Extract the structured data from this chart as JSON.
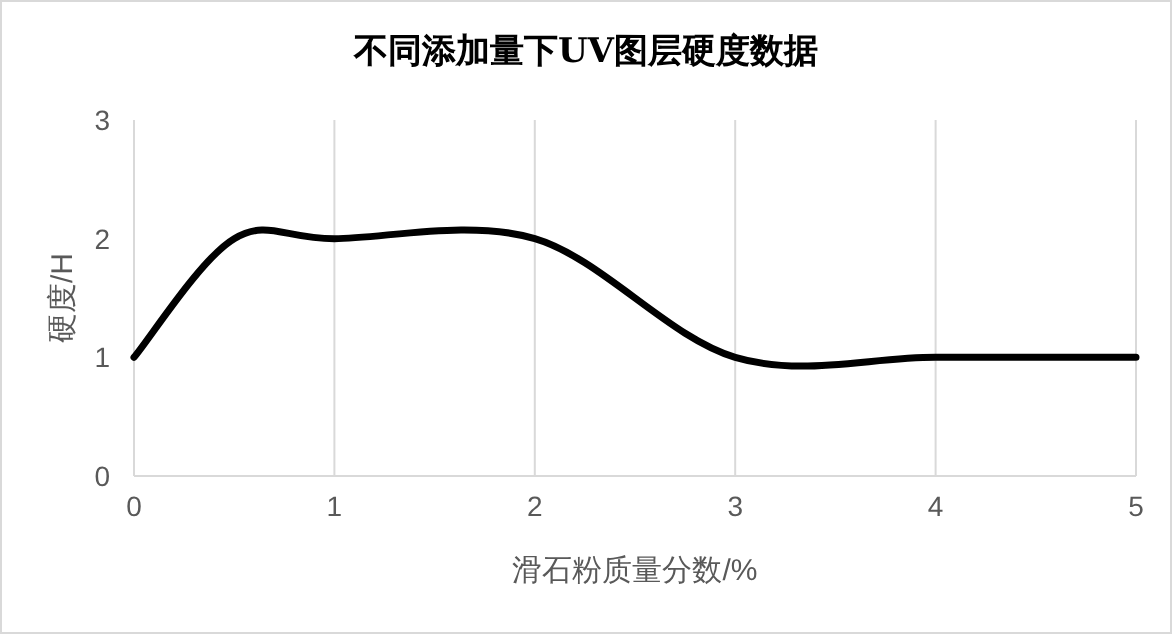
{
  "chart_data": {
    "type": "line",
    "title": "不同添加量下UV图层硬度数据",
    "xlabel": "滑石粉质量分数/%",
    "ylabel": "硬度/H",
    "x": [
      0,
      0.5,
      1,
      2,
      3,
      4,
      5
    ],
    "series": [
      {
        "color": "#000000",
        "values": [
          1,
          2,
          2,
          2,
          1,
          1,
          1
        ]
      }
    ],
    "xlim": [
      0,
      5
    ],
    "ylim": [
      0,
      3
    ],
    "xticks": [
      0,
      1,
      2,
      3,
      4,
      5
    ],
    "yticks": [
      0,
      1,
      2,
      3
    ],
    "grid": "x"
  }
}
